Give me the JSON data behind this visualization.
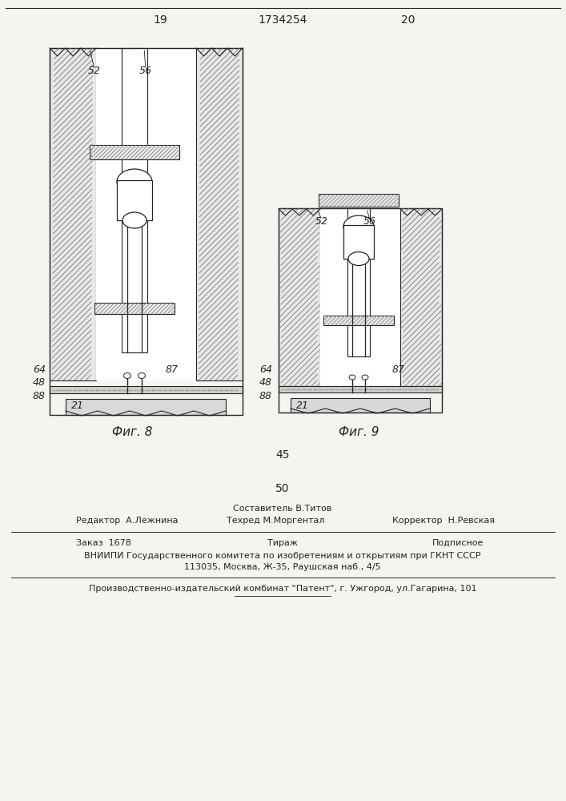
{
  "page_number_left": "19",
  "patent_number": "1734254",
  "page_number_right": "20",
  "fig8_label": "Фиг. 8",
  "fig9_label": "Фиг. 9",
  "number_45": "45",
  "number_50": "50",
  "editor_line": "Редактор  А.Лежнина",
  "sostavitel_line1": "Составитель В.Титов",
  "sostavitel_line2": "Техред М.Моргентал",
  "korrektor_line": "Корректор  Н.Ревская",
  "zakaz_line": "Заказ  1678",
  "tirazh_line": "Тираж",
  "podpisnoe_line": "Подписное",
  "vniiipi_line1": "ВНИИПИ Государственного комитета по изобретениям и открытиям при ГКНТ СССР",
  "vniiipi_line2": "113035, Москва, Ж-35, Раушская наб., 4/5",
  "production_line": "Производственно-издательский комбинат \"Патент\", г. Ужгород, ул.Гагарина, 101",
  "bg_color": "#f5f5f0",
  "line_color": "#222222"
}
